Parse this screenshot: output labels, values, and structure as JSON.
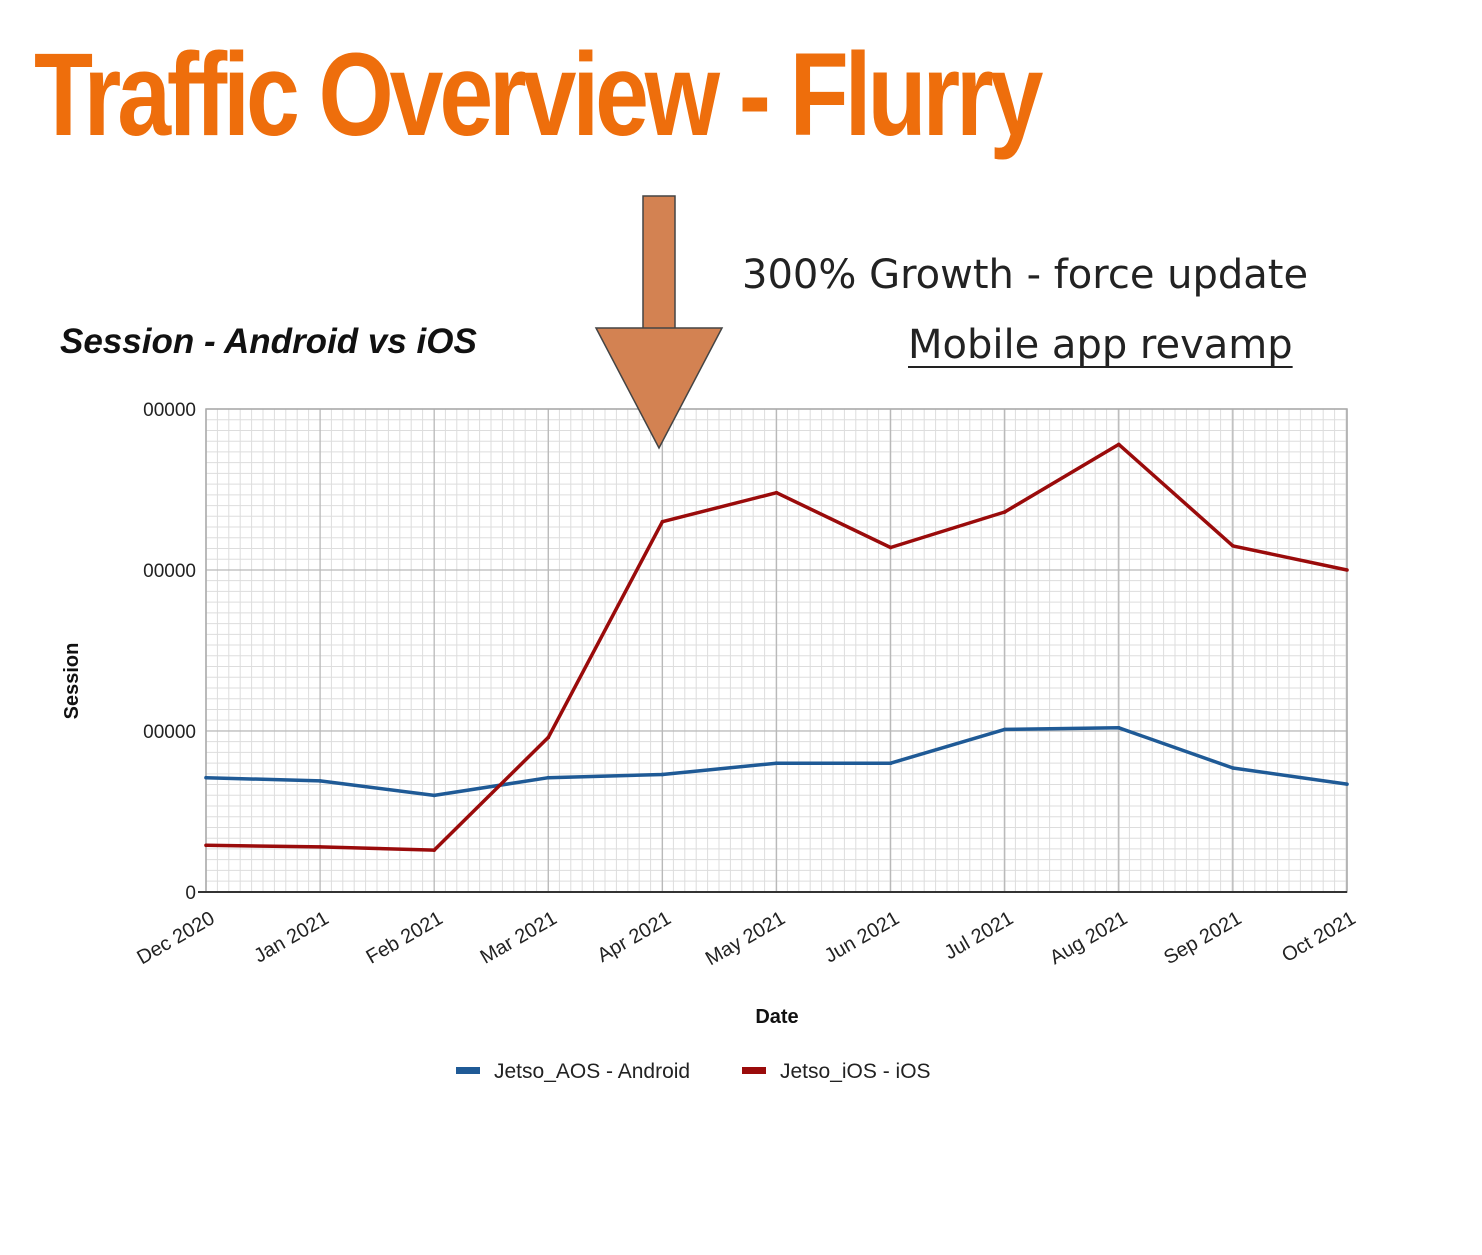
{
  "slide": {
    "title": "Traffic Overview - Flurry",
    "annotation_growth": "300% Growth - force update",
    "annotation_revamp": "Mobile app revamp",
    "arrow_color": "#d38252",
    "title_color": "#ee6e0c"
  },
  "chart_data": {
    "type": "line",
    "title": "Session - Android vs iOS",
    "xlabel": "Date",
    "ylabel": "Session",
    "categories": [
      "Dec 2020",
      "Jan 2021",
      "Feb 2021",
      "Mar 2021",
      "Apr 2021",
      "May 2021",
      "Jun 2021",
      "Jul 2021",
      "Aug 2021",
      "Sep 2021",
      "Oct 2021"
    ],
    "series": [
      {
        "name": "Jetso_AOS - Android",
        "color": "#1f5a96",
        "values": [
          71000,
          69000,
          60000,
          71000,
          73000,
          80000,
          80000,
          101000,
          102000,
          77000,
          67000
        ]
      },
      {
        "name": "Jetso_iOS - iOS",
        "color": "#9a0b0b",
        "values": [
          29000,
          28000,
          26000,
          96000,
          230000,
          248000,
          214000,
          236000,
          278000,
          215000,
          200000
        ]
      }
    ],
    "yticks": [
      0,
      "00000",
      "00000",
      "00000"
    ],
    "ylim": [
      0,
      300000
    ],
    "grid": true,
    "legend": "bottom"
  }
}
